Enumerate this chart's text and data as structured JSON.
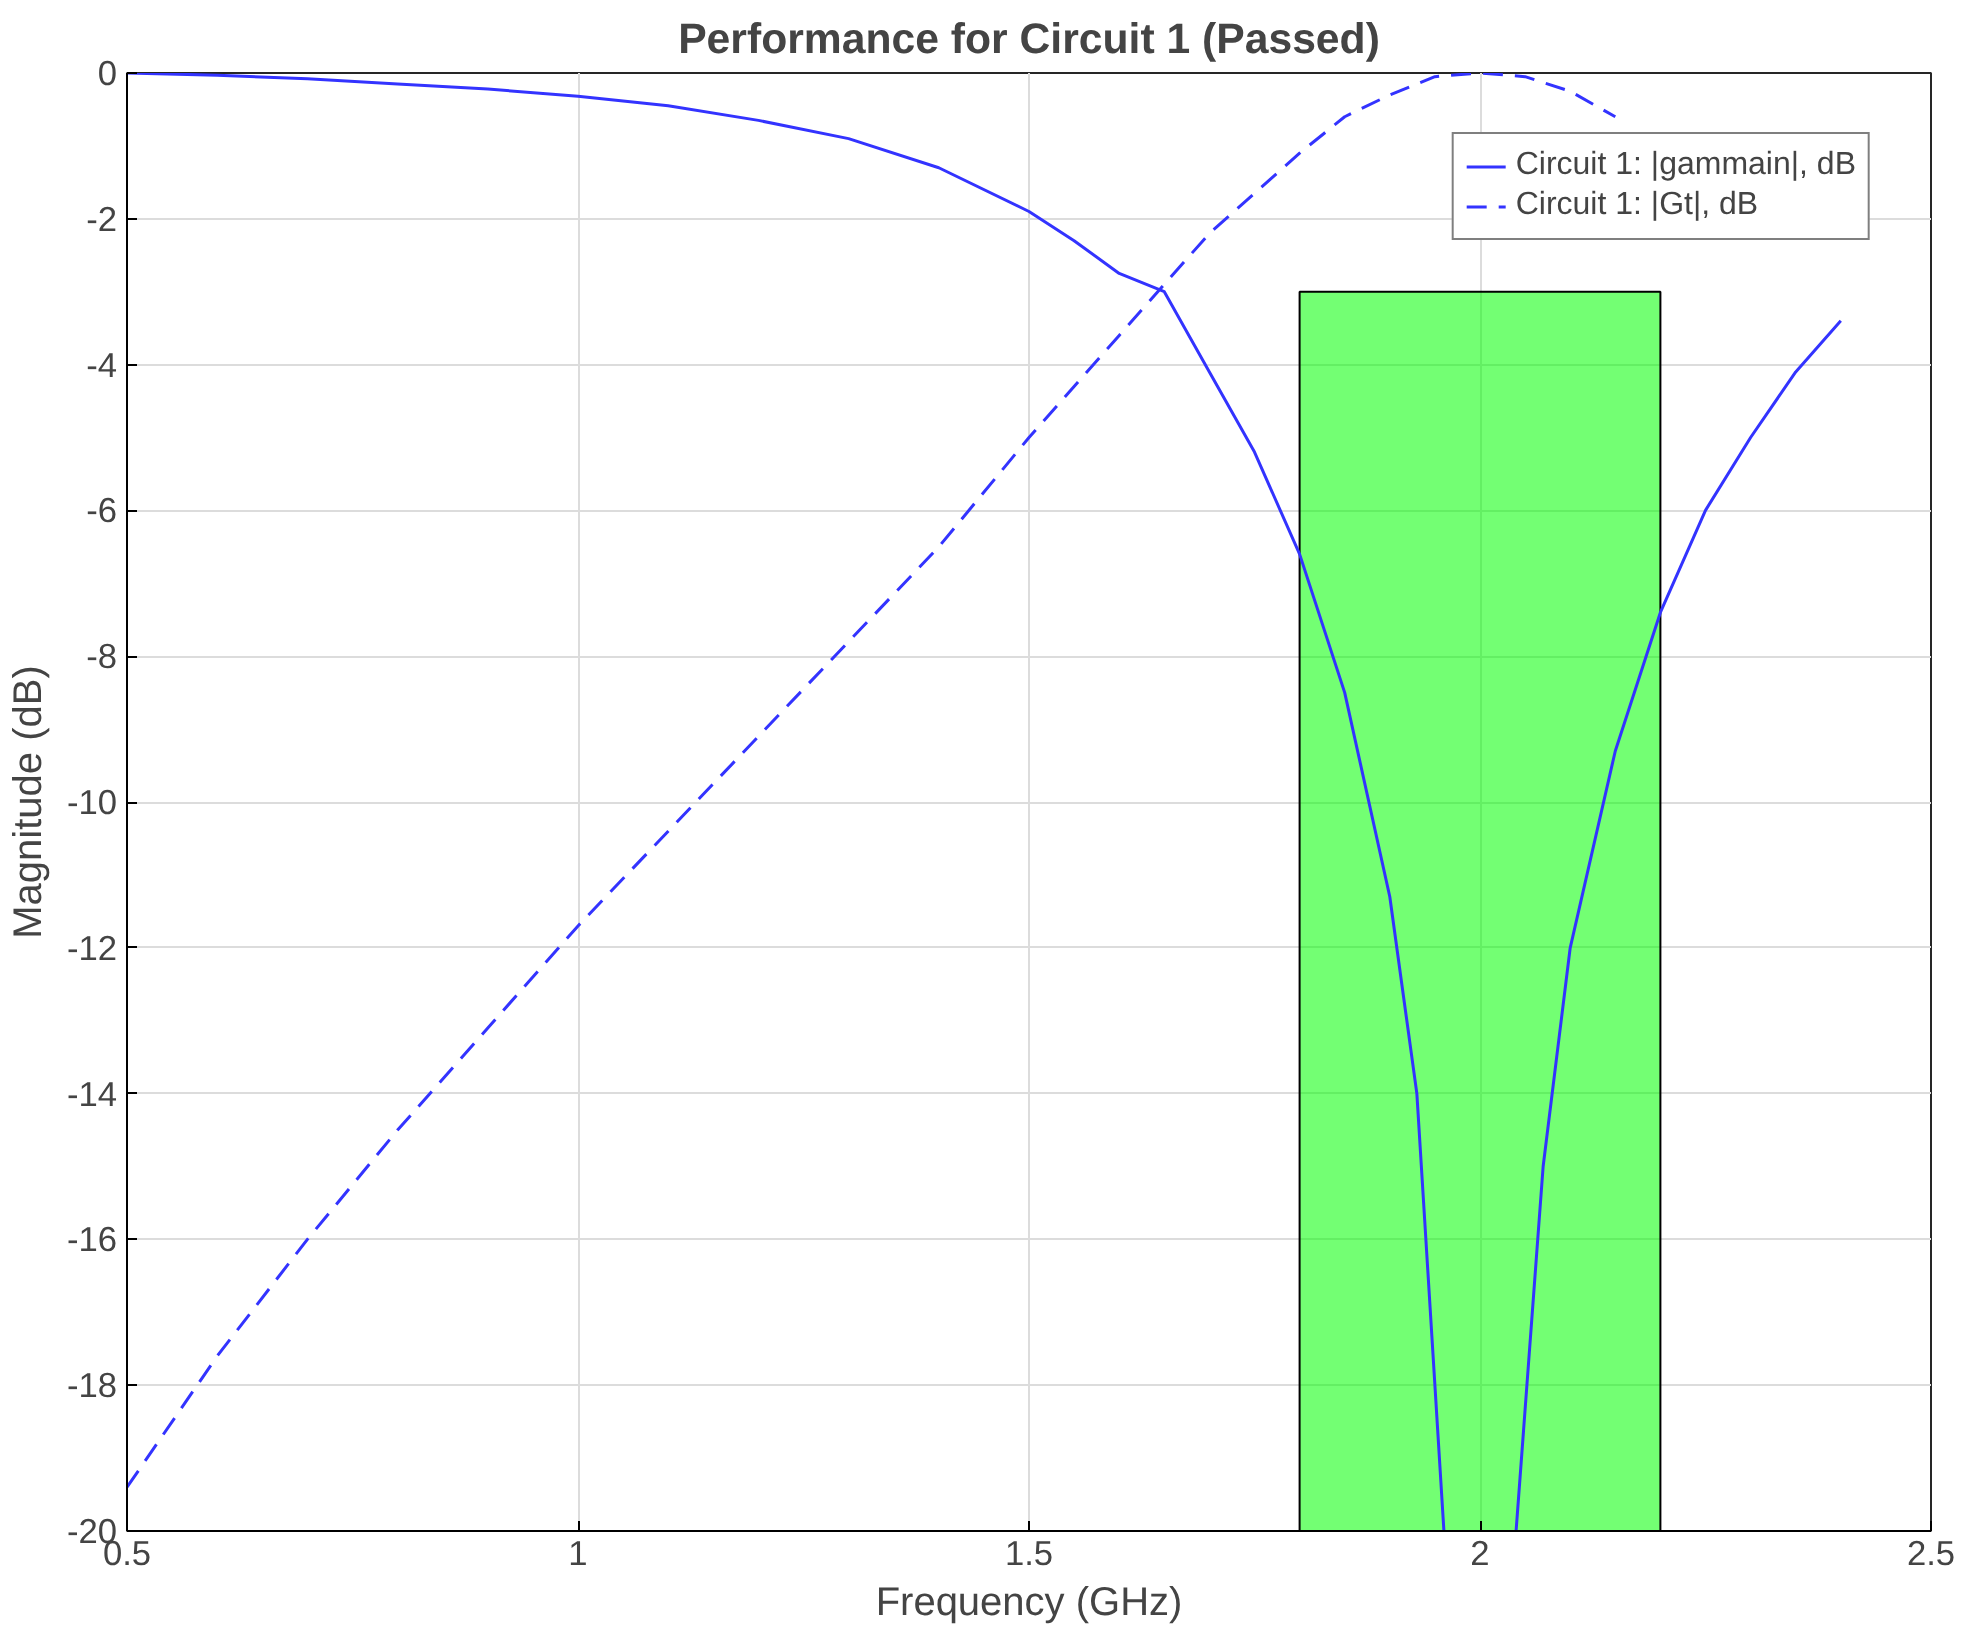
{
  "chart_data": {
    "type": "line",
    "title": "Performance for Circuit 1 (Passed)",
    "xlabel": "Frequency (GHz)",
    "ylabel": "Magnitude (dB)",
    "xlim": [
      0.5,
      2.5
    ],
    "xticks": [
      0.5,
      1,
      1.5,
      2,
      2.5
    ],
    "ylim": [
      -20,
      0
    ],
    "yticks": [
      -20,
      -18,
      -16,
      -14,
      -12,
      -10,
      -8,
      -6,
      -4,
      -2,
      0
    ],
    "grid": true,
    "legend": "top right",
    "series": [
      {
        "type": "bar",
        "color": "#00ff00",
        "x": [
          2.0
        ],
        "base": [
          -20
        ],
        "values": [
          17
        ]
      },
      {
        "name": "Circuit 1: |gammain|, dB",
        "color": "#3333ff",
        "line_style": "solid",
        "x": [
          0.5,
          0.6,
          0.7,
          0.8,
          0.9,
          1.0,
          1.1,
          1.2,
          1.3,
          1.4,
          1.5,
          1.55,
          1.6,
          1.65,
          1.7,
          1.75,
          1.8,
          1.85,
          1.9,
          1.93,
          1.96,
          2.0,
          2.04,
          2.07,
          2.1,
          2.15,
          2.2,
          2.25,
          2.3,
          2.35,
          2.4
        ],
        "values": [
          0,
          -0.03,
          -0.08,
          -0.15,
          -0.22,
          -0.32,
          -0.45,
          -0.65,
          -0.9,
          -1.3,
          -1.9,
          -2.3,
          -2.75,
          -3.0,
          -4.1,
          -5.2,
          -6.6,
          -8.5,
          -11.3,
          -14,
          -20,
          null,
          -20,
          -15,
          -12,
          -9.3,
          -7.4,
          -6,
          -5,
          -4.1,
          -3.4
        ]
      },
      {
        "name": "Circuit 1: |Gt|, dB",
        "color": "#3333ff",
        "line_style": "dashed",
        "x": [
          0.5,
          0.6,
          0.7,
          0.8,
          0.9,
          1.0,
          1.1,
          1.2,
          1.3,
          1.4,
          1.5,
          1.6,
          1.65,
          1.7,
          1.8,
          1.85,
          1.9,
          1.95,
          2.0,
          2.05,
          2.1,
          2.15
        ],
        "values": [
          -19.4,
          -17.6,
          -16.0,
          -14.5,
          -13.1,
          -11.7,
          -10.4,
          -9.1,
          -7.8,
          -6.5,
          -5.0,
          -3.6,
          -2.9,
          -2.2,
          -1.1,
          -0.6,
          -0.3,
          -0.05,
          0,
          -0.05,
          -0.25,
          -0.6
        ]
      }
    ]
  }
}
